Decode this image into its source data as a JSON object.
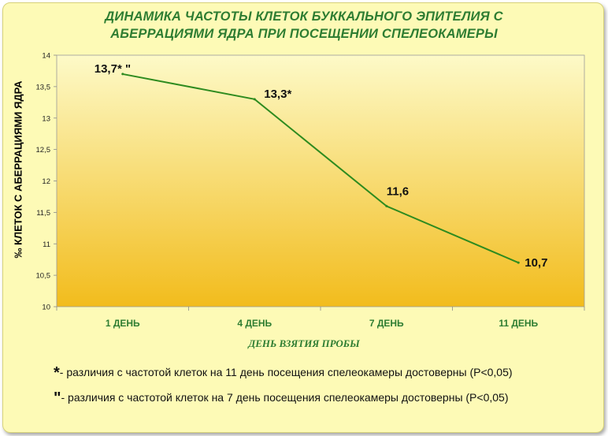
{
  "title_line1": "ДИНАМИКА ЧАСТОТЫ КЛЕТОК БУККАЛЬНОГО ЭПИТЕЛИЯ С",
  "title_line2": "АБЕРРАЦИЯМИ ЯДРА ПРИ ПОСЕЩЕНИИ СПЕЛЕОКАМЕРЫ",
  "colors": {
    "line": "#2e8b1f",
    "title": "#2e7d32",
    "plot_top": "#fdfac8",
    "plot_bottom": "#f2bc1c"
  },
  "chart_data": {
    "type": "line",
    "xlabel": "ДЕНЬ ВЗЯТИЯ ПРОБЫ",
    "ylabel": "‰ КЛЕТОК С АБЕРРАЦИЯМИ ЯДРА",
    "categories": [
      "1 ДЕНЬ",
      "4 ДЕНЬ",
      "7 ДЕНЬ",
      "11 ДЕНЬ"
    ],
    "values": [
      13.7,
      13.3,
      11.6,
      10.7
    ],
    "data_labels": [
      "13,7* \"",
      "13,3*",
      "11,6",
      "10,7"
    ],
    "ylim": [
      10,
      14
    ],
    "yticks": [
      "10",
      "10,5",
      "11",
      "11,5",
      "12",
      "12,5",
      "13",
      "13,5",
      "14"
    ],
    "grid": false
  },
  "notes": [
    {
      "mark": "*",
      "text": "- различия с частотой клеток на 11 день посещения спелеокамеры достоверны (Р<0,05)"
    },
    {
      "mark": "\"",
      "text": "- различия с частотой клеток на 7 день посещения спелеокамеры достоверны (Р<0,05)"
    }
  ]
}
